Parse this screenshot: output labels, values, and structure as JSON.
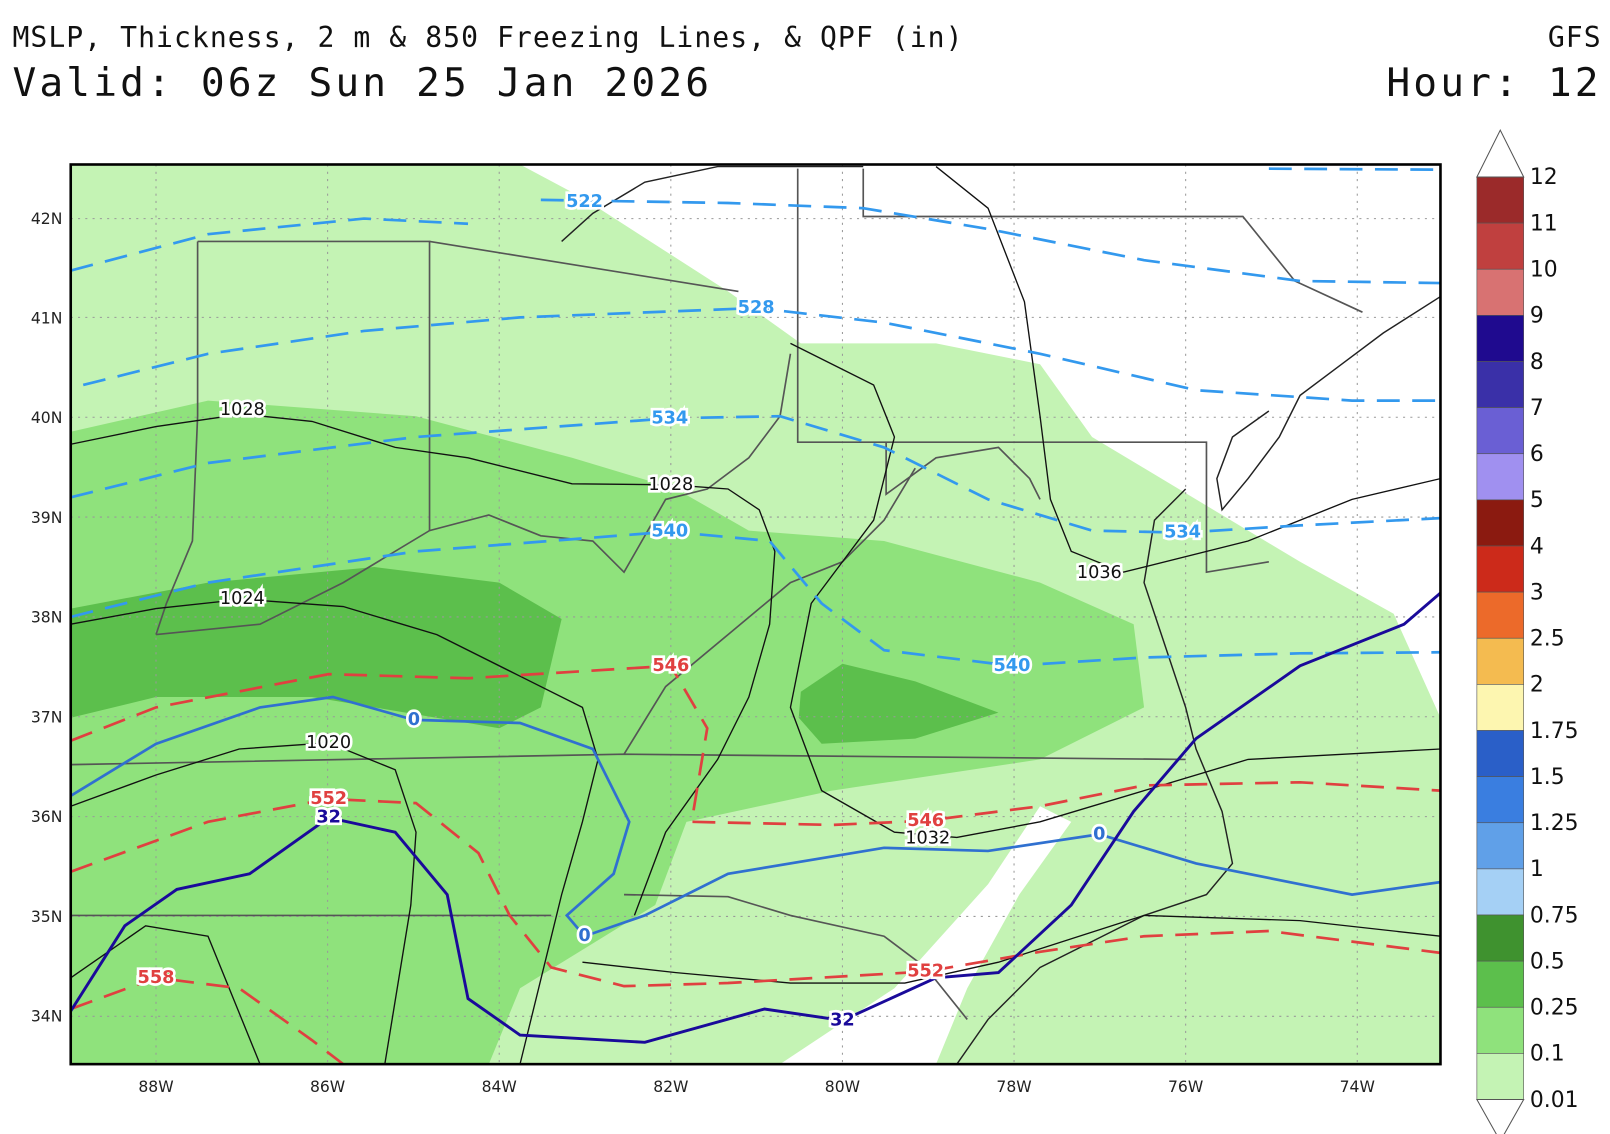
{
  "header": {
    "title": "MSLP, Thickness, 2 m & 850 Freezing Lines, & QPF (in)",
    "model": "GFS",
    "valid": "Valid: 06z Sun 25 Jan 2026",
    "hour": "Hour: 12"
  },
  "map": {
    "lat_labels": [
      "42N",
      "41N",
      "40N",
      "39N",
      "38N",
      "37N",
      "36N",
      "35N",
      "34N"
    ],
    "lon_labels": [
      "88W",
      "86W",
      "84W",
      "82W",
      "80W",
      "78W",
      "76W",
      "74W"
    ],
    "contour_labels": [
      "522",
      "528",
      "534",
      "540",
      "534",
      "540",
      "546",
      "546",
      "552",
      "552",
      "558",
      "1028",
      "1028",
      "1024",
      "1020",
      "1032",
      "1036",
      "0",
      "0",
      "0",
      "32",
      "32"
    ]
  },
  "colorbar": {
    "levels": [
      "12",
      "11",
      "10",
      "9",
      "8",
      "7",
      "6",
      "5",
      "4",
      "3",
      "2.5",
      "2",
      "1.75",
      "1.5",
      "1.25",
      "1",
      "0.75",
      "0.5",
      "0.25",
      "0.1",
      "0.01"
    ],
    "colors": [
      "#9b2a2a",
      "#c0403f",
      "#d87272",
      "#1f0a8f",
      "#3a30a8",
      "#6a5fd4",
      "#a090f0",
      "#8b1a10",
      "#cc2a1a",
      "#ec6a2a",
      "#f4bb50",
      "#fdf6b0",
      "#2a5fc8",
      "#3a7ee0",
      "#60a0e8",
      "#a5d0f5",
      "#3f922f",
      "#5cbf4c",
      "#8fe27c",
      "#c4f3b4"
    ]
  }
}
